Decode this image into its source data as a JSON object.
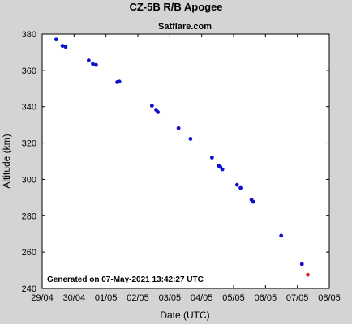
{
  "chart_data": {
    "type": "scatter",
    "title": "CZ-5B R/B Apogee",
    "subtitle": "Satflare.com",
    "xlabel": "Date (UTC)",
    "ylabel": "Altitude (km)",
    "x_tick_labels": [
      "29/04",
      "30/04",
      "01/05",
      "02/05",
      "03/05",
      "04/05",
      "05/05",
      "06/05",
      "07/05",
      "08/05"
    ],
    "y_ticks": [
      240,
      260,
      280,
      300,
      320,
      340,
      360,
      380
    ],
    "xlim": [
      "2021-04-29 00:00",
      "2021-05-08 00:00"
    ],
    "ylim": [
      240,
      380
    ],
    "grid": false,
    "annotation": "Generated on 07-May-2021 13:42:27 UTC",
    "colors": {
      "series": "#1010c8",
      "latest": "#e02020",
      "background": "#d4d4d4",
      "plot_background": "#ffffff",
      "annotation_background": "#ffffff"
    },
    "series": [
      {
        "color": "#1010c8",
        "points": [
          {
            "x": "2021-04-29 10:34",
            "y": 377
          },
          {
            "x": "2021-04-29 15:17",
            "y": 373.5
          },
          {
            "x": "2021-04-29 17:38",
            "y": 373
          },
          {
            "x": "2021-04-30 11:00",
            "y": 365.5
          },
          {
            "x": "2021-04-30 14:07",
            "y": 363.6
          },
          {
            "x": "2021-04-30 16:29",
            "y": 363
          },
          {
            "x": "2021-05-01 08:28",
            "y": 353.5
          },
          {
            "x": "2021-05-01 10:04",
            "y": 353.8
          },
          {
            "x": "2021-05-02 10:35",
            "y": 340.5
          },
          {
            "x": "2021-05-02 13:42",
            "y": 338.3
          },
          {
            "x": "2021-05-02 15:02",
            "y": 337
          },
          {
            "x": "2021-05-03 06:35",
            "y": 328.2
          },
          {
            "x": "2021-05-03 15:36",
            "y": 322.3
          },
          {
            "x": "2021-05-04 07:45",
            "y": 312
          },
          {
            "x": "2021-05-04 12:44",
            "y": 307.5
          },
          {
            "x": "2021-05-04 14:07",
            "y": 306.8
          },
          {
            "x": "2021-05-04 15:34",
            "y": 305.5
          },
          {
            "x": "2021-05-05 02:35",
            "y": 297
          },
          {
            "x": "2021-05-05 05:13",
            "y": 295.3
          },
          {
            "x": "2021-05-05 13:28",
            "y": 288.8
          },
          {
            "x": "2021-05-05 14:47",
            "y": 287.7
          },
          {
            "x": "2021-05-06 11:49",
            "y": 269
          },
          {
            "x": "2021-05-07 03:25",
            "y": 253.4
          }
        ]
      },
      {
        "color": "#e02020",
        "points": [
          {
            "x": "2021-05-07 07:49",
            "y": 247.5
          }
        ]
      }
    ]
  }
}
